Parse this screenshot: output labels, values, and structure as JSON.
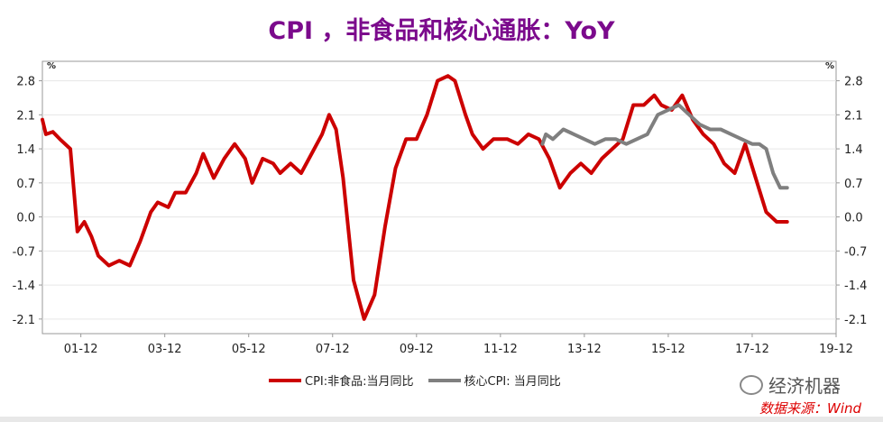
{
  "title": "CPI ，非食品和核心通胀：YoY",
  "unit_left": "%",
  "unit_right": "%",
  "legend": [
    {
      "label": "CPI:非食品:当月同比",
      "color": "#cc0000"
    },
    {
      "label": "核心CPI: 当月同比",
      "color": "#7f7f7f"
    }
  ],
  "watermark": "经济机器",
  "source": "数据来源：Wind",
  "chart_data": {
    "type": "line",
    "title": "CPI ，非食品和核心通胀：YoY",
    "xlabel": "",
    "ylabel": "%",
    "ylim": [
      -2.4,
      3.2
    ],
    "yticks": [
      2.8,
      2.1,
      1.4,
      0.7,
      0.0,
      -0.7,
      -1.4,
      -2.1
    ],
    "ytick_labels": [
      "2.8",
      "2.1",
      "1.4",
      "0.7",
      "0.0",
      "-0.7",
      "-1.4",
      "-2.1"
    ],
    "x_range": [
      "2001-01",
      "2019-12"
    ],
    "xtick_labels": [
      "01-12",
      "03-12",
      "05-12",
      "07-12",
      "09-12",
      "11-12",
      "13-12",
      "15-12",
      "17-12",
      "19-12"
    ],
    "legend_position": "bottom",
    "grid": true,
    "series": [
      {
        "name": "CPI:非食品:当月同比",
        "color": "#cc0000",
        "points": [
          [
            "2001-01",
            2.0
          ],
          [
            "2001-02",
            1.7
          ],
          [
            "2001-04",
            1.75
          ],
          [
            "2001-06",
            1.6
          ],
          [
            "2001-09",
            1.4
          ],
          [
            "2001-11",
            -0.3
          ],
          [
            "2002-01",
            -0.1
          ],
          [
            "2002-03",
            -0.4
          ],
          [
            "2002-05",
            -0.8
          ],
          [
            "2002-08",
            -1.0
          ],
          [
            "2002-11",
            -0.9
          ],
          [
            "2003-02",
            -1.0
          ],
          [
            "2003-05",
            -0.5
          ],
          [
            "2003-08",
            0.1
          ],
          [
            "2003-10",
            0.3
          ],
          [
            "2004-01",
            0.2
          ],
          [
            "2004-03",
            0.5
          ],
          [
            "2004-06",
            0.5
          ],
          [
            "2004-09",
            0.9
          ],
          [
            "2004-11",
            1.3
          ],
          [
            "2005-02",
            0.8
          ],
          [
            "2005-05",
            1.2
          ],
          [
            "2005-08",
            1.5
          ],
          [
            "2005-11",
            1.2
          ],
          [
            "2006-01",
            0.7
          ],
          [
            "2006-04",
            1.2
          ],
          [
            "2006-07",
            1.1
          ],
          [
            "2006-09",
            0.9
          ],
          [
            "2006-12",
            1.1
          ],
          [
            "2007-03",
            0.9
          ],
          [
            "2007-06",
            1.3
          ],
          [
            "2007-09",
            1.7
          ],
          [
            "2007-11",
            2.1
          ],
          [
            "2008-01",
            1.8
          ],
          [
            "2008-03",
            0.8
          ],
          [
            "2008-06",
            -1.3
          ],
          [
            "2008-09",
            -2.1
          ],
          [
            "2008-12",
            -1.6
          ],
          [
            "2009-03",
            -0.2
          ],
          [
            "2009-06",
            1.0
          ],
          [
            "2009-09",
            1.6
          ],
          [
            "2009-12",
            1.6
          ],
          [
            "2010-03",
            2.1
          ],
          [
            "2010-06",
            2.8
          ],
          [
            "2010-09",
            2.9
          ],
          [
            "2010-11",
            2.8
          ],
          [
            "2011-02",
            2.1
          ],
          [
            "2011-04",
            1.7
          ],
          [
            "2011-07",
            1.4
          ],
          [
            "2011-10",
            1.6
          ],
          [
            "2012-02",
            1.6
          ],
          [
            "2012-05",
            1.5
          ],
          [
            "2012-08",
            1.7
          ],
          [
            "2012-11",
            1.6
          ],
          [
            "2013-02",
            1.2
          ],
          [
            "2013-05",
            0.6
          ],
          [
            "2013-08",
            0.9
          ],
          [
            "2013-11",
            1.1
          ],
          [
            "2014-02",
            0.9
          ],
          [
            "2014-05",
            1.2
          ],
          [
            "2014-08",
            1.4
          ],
          [
            "2014-11",
            1.6
          ],
          [
            "2015-02",
            2.3
          ],
          [
            "2015-05",
            2.3
          ],
          [
            "2015-08",
            2.5
          ],
          [
            "2015-10",
            2.3
          ],
          [
            "2016-01",
            2.2
          ],
          [
            "2016-04",
            2.5
          ],
          [
            "2016-07",
            2.0
          ],
          [
            "2016-10",
            1.7
          ],
          [
            "2017-01",
            1.5
          ],
          [
            "2017-04",
            1.1
          ],
          [
            "2017-07",
            0.9
          ],
          [
            "2017-10",
            1.5
          ],
          [
            "2018-01",
            0.8
          ],
          [
            "2018-04",
            0.1
          ],
          [
            "2018-07",
            -0.1
          ],
          [
            "2018-10",
            -0.1
          ]
        ]
      },
      {
        "name": "核心CPI: 当月同比",
        "color": "#7f7f7f",
        "points": [
          [
            "2012-12",
            1.5
          ],
          [
            "2013-01",
            1.7
          ],
          [
            "2013-03",
            1.6
          ],
          [
            "2013-06",
            1.8
          ],
          [
            "2013-09",
            1.7
          ],
          [
            "2013-12",
            1.6
          ],
          [
            "2014-03",
            1.5
          ],
          [
            "2014-06",
            1.6
          ],
          [
            "2014-09",
            1.6
          ],
          [
            "2014-12",
            1.5
          ],
          [
            "2015-03",
            1.6
          ],
          [
            "2015-06",
            1.7
          ],
          [
            "2015-09",
            2.1
          ],
          [
            "2015-12",
            2.2
          ],
          [
            "2016-03",
            2.3
          ],
          [
            "2016-06",
            2.1
          ],
          [
            "2016-09",
            1.9
          ],
          [
            "2016-12",
            1.8
          ],
          [
            "2017-03",
            1.8
          ],
          [
            "2017-06",
            1.7
          ],
          [
            "2017-09",
            1.6
          ],
          [
            "2017-12",
            1.5
          ],
          [
            "2018-02",
            1.5
          ],
          [
            "2018-04",
            1.4
          ],
          [
            "2018-06",
            0.9
          ],
          [
            "2018-08",
            0.6
          ],
          [
            "2018-10",
            0.6
          ]
        ]
      }
    ]
  }
}
